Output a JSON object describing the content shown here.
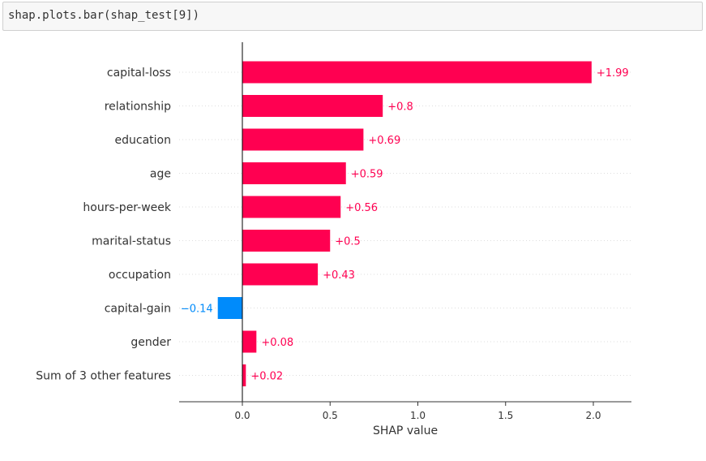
{
  "code_cell": {
    "code": "shap.plots.bar(shap_test[9])"
  },
  "chart_data": {
    "type": "bar",
    "orientation": "horizontal",
    "categories": [
      "capital-loss",
      "relationship",
      "education",
      "age",
      "hours-per-week",
      "marital-status",
      "occupation",
      "capital-gain",
      "gender",
      "Sum of 3 other features"
    ],
    "values": [
      1.99,
      0.8,
      0.69,
      0.59,
      0.56,
      0.5,
      0.43,
      -0.14,
      0.08,
      0.02
    ],
    "value_labels": [
      "+1.99",
      "+0.8",
      "+0.69",
      "+0.59",
      "+0.56",
      "+0.5",
      "+0.43",
      "−0.14",
      "+0.08",
      "+0.02"
    ],
    "xlabel": "SHAP value",
    "xticks": [
      "0.0",
      "0.5",
      "1.0",
      "1.5",
      "2.0"
    ],
    "xlim": [
      -0.36,
      2.2
    ],
    "grid": false,
    "colors": {
      "positive": "#ff0051",
      "positive_text": "#ff0051",
      "negative": "#008bfb",
      "negative_text": "#008bfb",
      "zero_line": "#000000"
    }
  }
}
